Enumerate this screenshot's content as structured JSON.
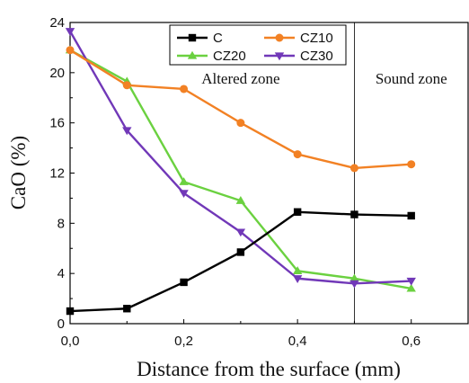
{
  "chart_data": {
    "type": "line",
    "title": "",
    "xlabel": "Distance from the surface (mm)",
    "ylabel": "CaO (%)",
    "xlim": [
      0.0,
      0.7
    ],
    "ylim": [
      0,
      24
    ],
    "xticks": [
      0.0,
      0.2,
      0.4,
      0.6
    ],
    "xtick_labels": [
      "0,0",
      "0,2",
      "0,4",
      "0,6"
    ],
    "yticks": [
      0,
      4,
      8,
      12,
      16,
      20,
      24
    ],
    "ytick_labels": [
      "0",
      "4",
      "8",
      "12",
      "16",
      "20",
      "24"
    ],
    "grid": false,
    "legend_position": "top-center",
    "x": [
      0.0,
      0.1,
      0.2,
      0.3,
      0.4,
      0.5,
      0.6
    ],
    "series": [
      {
        "name": "C",
        "color": "#000000",
        "marker": "square",
        "values": [
          1.0,
          1.2,
          3.3,
          5.7,
          8.9,
          8.7,
          8.6
        ]
      },
      {
        "name": "CZ10",
        "color": "#f28124",
        "marker": "circle",
        "values": [
          21.8,
          19.0,
          18.7,
          16.0,
          13.5,
          12.4,
          12.7
        ]
      },
      {
        "name": "CZ20",
        "color": "#6bd140",
        "marker": "triangle-up",
        "values": [
          21.8,
          19.3,
          11.3,
          9.8,
          4.2,
          3.6,
          2.8
        ]
      },
      {
        "name": "CZ30",
        "color": "#7138b8",
        "marker": "triangle-down",
        "values": [
          23.3,
          15.4,
          10.4,
          7.3,
          3.6,
          3.2,
          3.4
        ]
      }
    ],
    "annotations": [
      {
        "text": "Altered zone",
        "x": 0.3,
        "y": 18.7
      },
      {
        "text": "Sound zone",
        "x": 0.6,
        "y": 18.7
      }
    ],
    "vertical_line_x": 0.5
  }
}
